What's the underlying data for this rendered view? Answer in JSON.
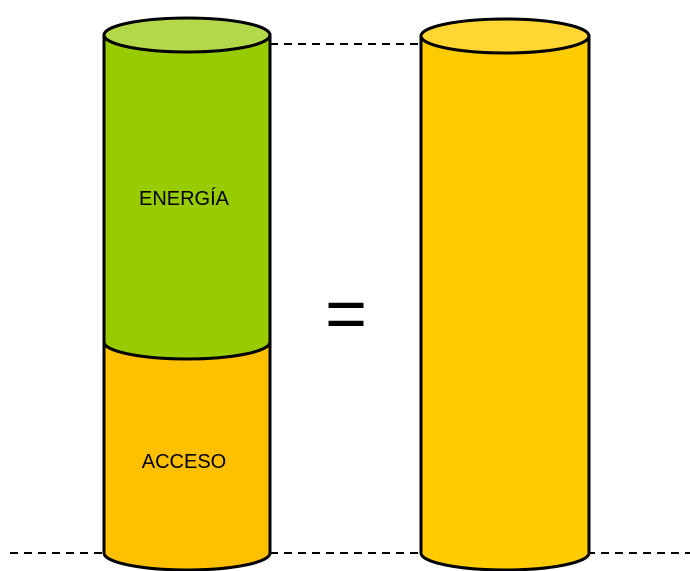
{
  "diagram": {
    "left_column": {
      "top_segment_label": "ENERGÍA",
      "bottom_segment_label": "ACCESO"
    },
    "equals_sign": "=",
    "colors": {
      "energy_fill": "#99cc00",
      "energy_top": "#b3d94a",
      "access_fill": "#ffc000",
      "total_fill": "#ffcc00",
      "total_top": "#ffd632",
      "outline": "#000000"
    }
  }
}
